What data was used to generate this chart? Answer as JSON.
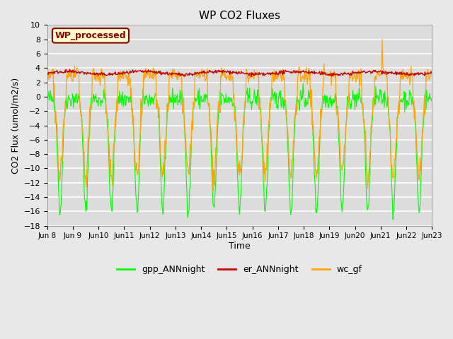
{
  "title": "WP CO2 Fluxes",
  "xlabel": "Time",
  "ylabel": "CO2 Flux (umol/m2/s)",
  "ylim": [
    -18,
    10
  ],
  "yticks": [
    -18,
    -16,
    -14,
    -12,
    -10,
    -8,
    -6,
    -4,
    -2,
    0,
    2,
    4,
    6,
    8,
    10
  ],
  "x_start_day": 8,
  "x_end_day": 23,
  "n_points": 720,
  "legend_label": "WP_processed",
  "line_colors": {
    "gpp": "#00FF00",
    "er": "#CC0000",
    "wc": "#FFA500"
  },
  "line_labels": [
    "gpp_ANNnight",
    "er_ANNnight",
    "wc_gf"
  ],
  "fig_bg_color": "#E8E8E8",
  "plot_bg_color": "#DCDCDC",
  "legend_box_facecolor": "#FFFFCC",
  "legend_box_edgecolor": "#8B0000",
  "legend_text_color": "#8B0000",
  "x_tick_labels": [
    "Jun 8",
    "Jun 9",
    "Jun 10",
    "Jun 11",
    "Jun 12",
    "Jun 13",
    "Jun 14",
    "Jun 15",
    "Jun 16",
    "Jun 17",
    "Jun 18",
    "Jun 19",
    "Jun 20",
    "Jun 21",
    "Jun 22",
    "Jun 23"
  ],
  "x_tick_positions": [
    8,
    9,
    10,
    11,
    12,
    13,
    14,
    15,
    16,
    17,
    18,
    19,
    20,
    21,
    22,
    23
  ]
}
